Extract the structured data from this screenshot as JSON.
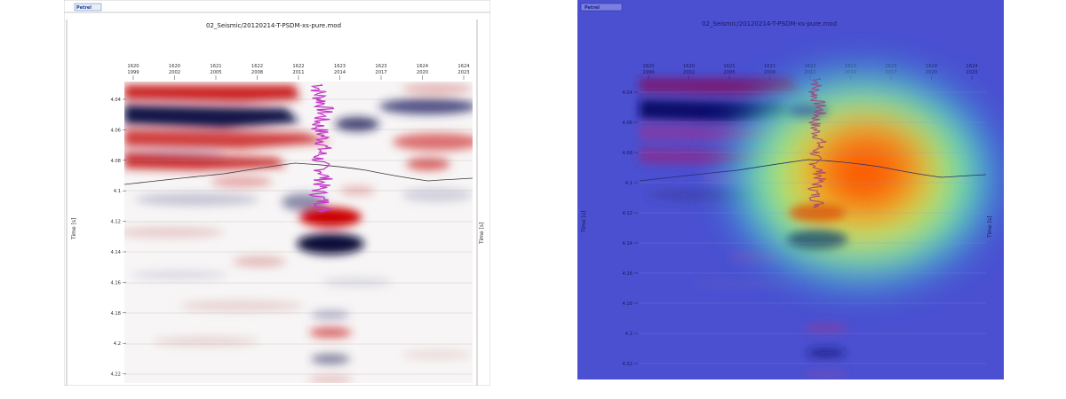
{
  "left_panel": {
    "logo": "Petrel",
    "title": "02_Seismic/20120214-T-PSDM-xs-pure.mod",
    "y_axis_label": "Time [s]",
    "x_ticks": [
      {
        "inline": "1620",
        "xline": "1999"
      },
      {
        "inline": "1620",
        "xline": "2002"
      },
      {
        "inline": "1621",
        "xline": "2005"
      },
      {
        "inline": "1622",
        "xline": "2008"
      },
      {
        "inline": "1622",
        "xline": "2011"
      },
      {
        "inline": "1623",
        "xline": "2014"
      },
      {
        "inline": "1623",
        "xline": "2017"
      },
      {
        "inline": "1624",
        "xline": "2020"
      },
      {
        "inline": "1624",
        "xline": "2023"
      }
    ],
    "y_ticks": [
      "4.04",
      "4.06",
      "4.08",
      "4.1",
      "4.12",
      "4.14",
      "4.16",
      "4.18",
      "4.2",
      "4.22"
    ]
  },
  "right_panel": {
    "logo": "Petrel",
    "title": "02_Seismic/20120214-T-PSDM-xs-pure.mod",
    "y_axis_label": "Time [s]",
    "overlay": "heatmap"
  },
  "colors": {
    "seismic_positive": "#c81414",
    "seismic_negative": "#12124a",
    "well_log": "#c43cc8",
    "horizon": "#3a3a3a",
    "heatmap_background": "#4a4ad0"
  }
}
